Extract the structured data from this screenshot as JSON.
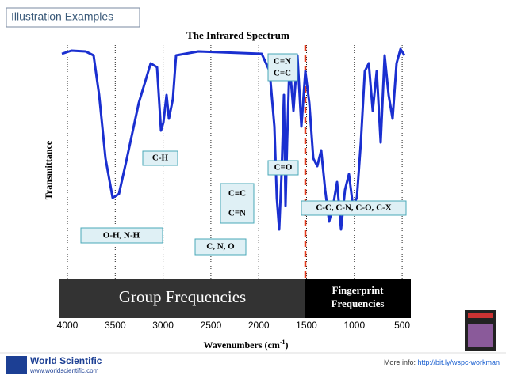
{
  "badge": "Illustration Examples",
  "figure": {
    "title": "The Infrared Spectrum",
    "y_label": "Transmittance",
    "x_label": "Wavenumbers (cm",
    "x_label_sup": "-1",
    "x_label_end": ")",
    "x_ticks": [
      "4000",
      "3500",
      "3000",
      "2500",
      "2000",
      "1500",
      "1000",
      "500"
    ],
    "regions": {
      "group": "Group Frequencies",
      "fingerprint": [
        "Fingerprint",
        "Frequencies"
      ]
    },
    "labels": {
      "cn_cc_double": [
        "C=N",
        "C=C"
      ],
      "ch": "C-H",
      "co": "C=O",
      "triple": [
        "C≡C",
        "C≡N"
      ],
      "fingerprint_bonds": "C-C, C-N, C-O, C-X",
      "oh_nh": "O-H, N-H",
      "cno": "C, N, O"
    }
  },
  "footer": {
    "logo": "World Scientific",
    "logo_url": "www.worldscientific.com",
    "info": "More info: ",
    "link": "http://bit.ly/wspc-workman"
  }
}
